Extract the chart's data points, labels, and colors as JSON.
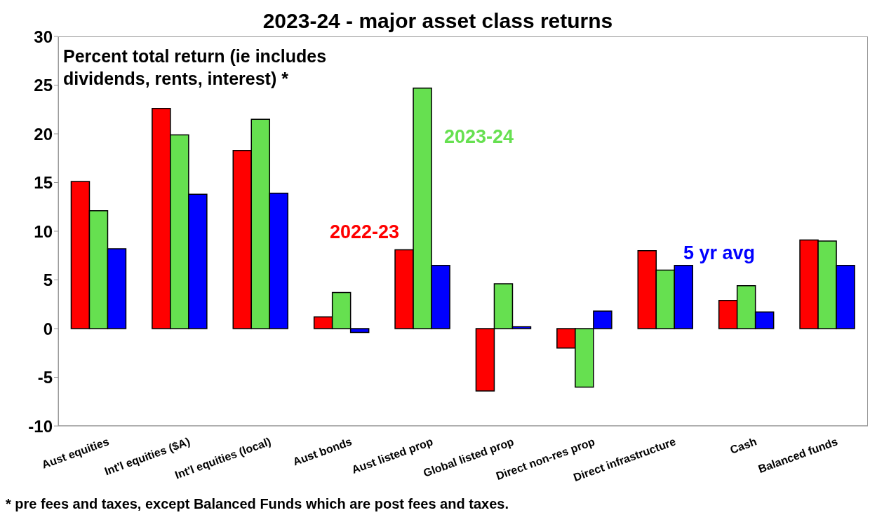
{
  "chart_data": {
    "type": "bar",
    "title": "2023-24 - major asset class returns",
    "categories": [
      "Aust equities",
      "Int'l equities ($A)",
      "Int'l equities (local)",
      "Aust bonds",
      "Aust listed prop",
      "Global listed prop",
      "Direct non-res prop",
      "Direct infrastructure",
      "Cash",
      "Balanced funds"
    ],
    "series": [
      {
        "name": "2022-23",
        "color": "#ff0000",
        "values": [
          15.1,
          22.6,
          18.3,
          1.2,
          8.1,
          -6.4,
          -2.0,
          8.0,
          2.9,
          9.1
        ]
      },
      {
        "name": "2023-24",
        "color": "#66e050",
        "values": [
          12.1,
          19.9,
          21.5,
          3.7,
          24.7,
          4.6,
          -6.0,
          6.0,
          4.4,
          9.0
        ]
      },
      {
        "name": "5 yr avg",
        "color": "#0000ff",
        "values": [
          8.2,
          13.8,
          13.9,
          -0.4,
          6.5,
          0.2,
          1.8,
          6.5,
          1.7,
          6.5
        ]
      }
    ],
    "ylim": [
      -10,
      30
    ],
    "yticks": [
      -10,
      -5,
      0,
      5,
      10,
      15,
      20,
      25,
      30
    ],
    "grid": false,
    "legend": false,
    "annotations": [
      "Percent total return (ie includes dividends, rents, interest) *",
      "* pre fees and taxes, except Balanced Funds which are post fees and taxes."
    ]
  }
}
